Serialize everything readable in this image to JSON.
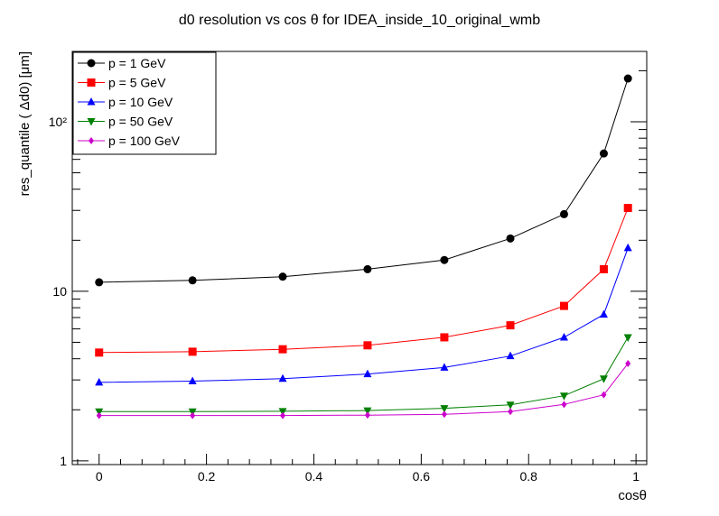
{
  "chart_data": {
    "type": "line",
    "title": "d0 resolution vs cos  θ for IDEA_inside_10_original_wmb",
    "xlabel": "cosθ",
    "ylabel": "res_quantile ( Δd0) [μm]",
    "xlim": [
      -0.05,
      1.02
    ],
    "ylim": [
      0.95,
      260
    ],
    "yscale": "log",
    "grid": false,
    "legend_position": "top-left",
    "x_tick_labels": [
      "0",
      "0.2",
      "0.4",
      "0.6",
      "0.8",
      "1"
    ],
    "y_tick_labels": [
      "1",
      "10",
      "10²"
    ],
    "x": [
      0.0,
      0.174,
      0.342,
      0.5,
      0.643,
      0.766,
      0.866,
      0.94,
      0.985
    ],
    "series": [
      {
        "name": "p = 1 GeV",
        "color": "#000000",
        "marker": "circle",
        "values": [
          11.3,
          11.6,
          12.2,
          13.5,
          15.3,
          20.5,
          28.5,
          65,
          180
        ]
      },
      {
        "name": "p = 5 GeV",
        "color": "#ff0000",
        "marker": "square",
        "values": [
          4.35,
          4.4,
          4.55,
          4.8,
          5.35,
          6.3,
          8.2,
          13.5,
          31
        ]
      },
      {
        "name": "p = 10 GeV",
        "color": "#0000ff",
        "marker": "triangle-up",
        "values": [
          2.9,
          2.95,
          3.05,
          3.25,
          3.55,
          4.15,
          5.35,
          7.3,
          18
        ]
      },
      {
        "name": "p = 50 GeV",
        "color": "#008000",
        "marker": "triangle-down",
        "values": [
          1.95,
          1.95,
          1.96,
          1.98,
          2.04,
          2.14,
          2.42,
          3.05,
          5.35
        ]
      },
      {
        "name": "p = 100 GeV",
        "color": "#cc00cc",
        "marker": "diamond",
        "values": [
          1.85,
          1.85,
          1.85,
          1.86,
          1.88,
          1.95,
          2.15,
          2.45,
          3.75
        ]
      }
    ]
  }
}
